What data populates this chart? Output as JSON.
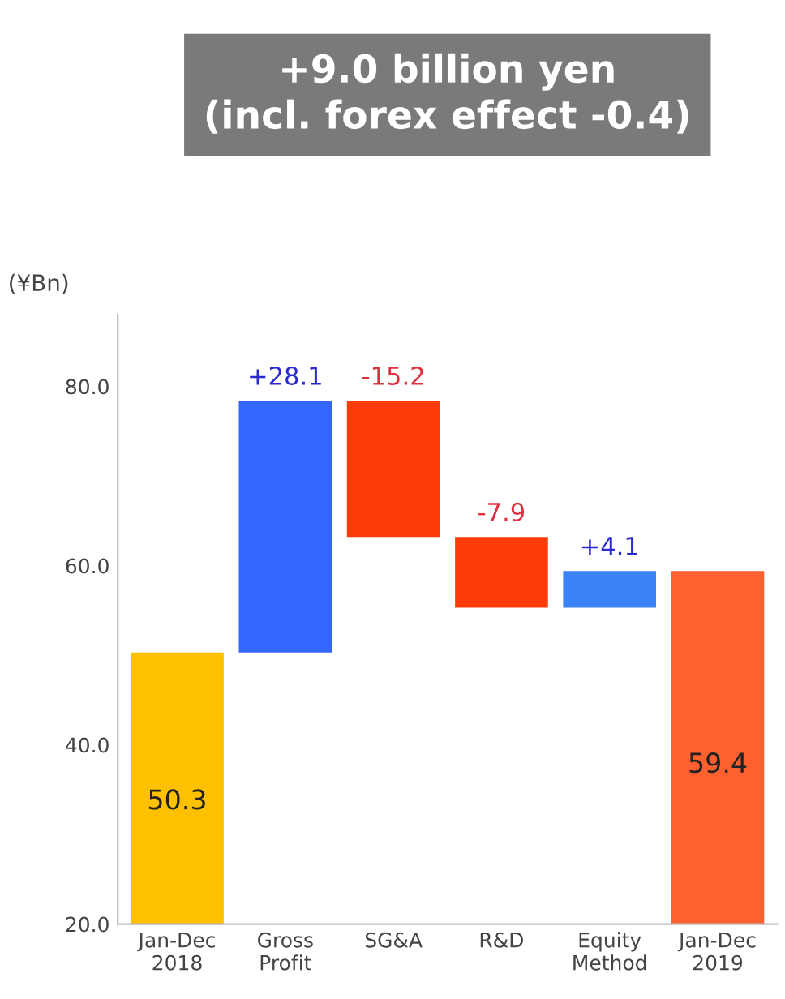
{
  "chart_data": {
    "type": "bar",
    "title": "+9.0 billion yen\n(incl. forex effect -0.4)",
    "ylabel": "(¥Bn)",
    "categories": [
      "Jan-Dec\n2018",
      "Gross\nProfit",
      "SG&A",
      "R&D",
      "Equity\nMethod",
      "Jan-Dec\n2019"
    ],
    "values": [
      50.3,
      28.1,
      -15.2,
      -7.9,
      4.1,
      59.4
    ],
    "base": [
      null,
      50.3,
      78.4,
      63.2,
      55.3,
      null
    ],
    "colors": [
      "#ffc000",
      "#3366ff",
      "#ff3b0a",
      "#ff3b0a",
      "#3b82f6",
      "#ff6030"
    ],
    "value_labels": [
      "50.3",
      "+28.1",
      "-15.2",
      "-7.9",
      "+4.1",
      "59.4"
    ],
    "ylim": [
      20,
      88
    ],
    "yticks": [
      {
        "value": 20,
        "label": "20.0"
      },
      {
        "value": 40,
        "label": "40.0"
      },
      {
        "value": 60,
        "label": "60.0"
      },
      {
        "value": 80,
        "label": "80.0"
      }
    ],
    "grid": false,
    "legend": false
  }
}
